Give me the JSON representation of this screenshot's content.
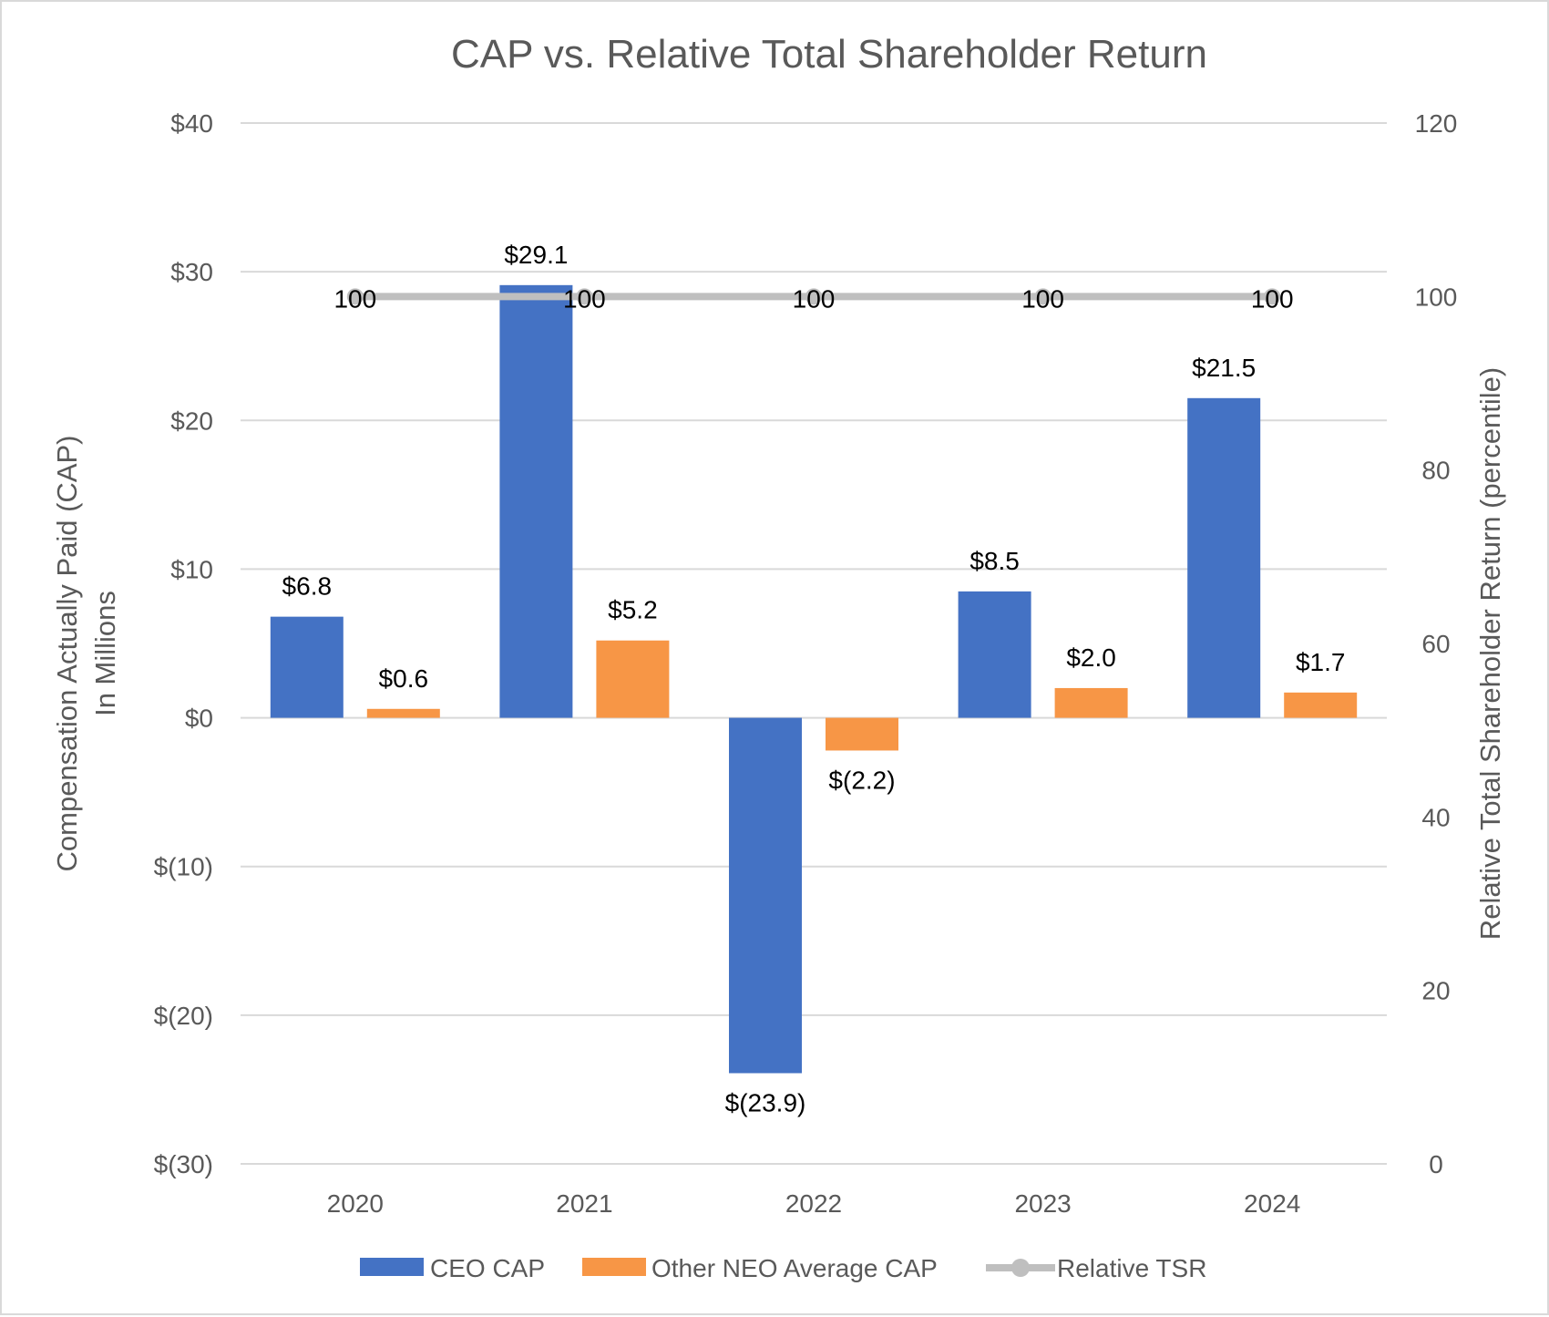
{
  "chart_data": {
    "type": "bar",
    "title": "CAP vs. Relative Total Shareholder Return",
    "ylabel": [
      "Compensation Actually Paid (CAP)",
      "In Millions"
    ],
    "y2label": "Relative Total Shareholder Return (percentile)",
    "categories": [
      "2020",
      "2021",
      "2022",
      "2023",
      "2024"
    ],
    "ylim": [
      -30,
      40
    ],
    "y_ticks": [
      -30,
      -20,
      -10,
      0,
      10,
      20,
      30,
      40
    ],
    "y_tick_labels": [
      "$(30)",
      "$(20)",
      "$(10)",
      "$0",
      "$10",
      "$20",
      "$30",
      "$40"
    ],
    "y2lim": [
      0,
      120
    ],
    "y2_ticks": [
      0,
      20,
      40,
      60,
      80,
      100,
      120
    ],
    "y2_tick_labels": [
      "0",
      "20",
      "40",
      "60",
      "80",
      "100",
      "120"
    ],
    "grid": true,
    "legend_position": "bottom",
    "series": [
      {
        "name": "CEO CAP",
        "type": "bar",
        "axis": "left",
        "color": "#4472c4",
        "values": [
          6.8,
          29.1,
          -23.9,
          8.5,
          21.5
        ],
        "labels": [
          "$6.8",
          "$29.1",
          "$(23.9)",
          "$8.5",
          "$21.5"
        ]
      },
      {
        "name": "Other NEO Average CAP",
        "type": "bar",
        "axis": "left",
        "color": "#f79646",
        "values": [
          0.6,
          5.2,
          -2.2,
          2.0,
          1.7
        ],
        "labels": [
          "$0.6",
          "$5.2",
          "$(2.2)",
          "$2.0",
          "$1.7"
        ]
      },
      {
        "name": "Relative TSR",
        "type": "line",
        "axis": "right",
        "color": "#bfbfbf",
        "values": [
          100,
          100,
          100,
          100,
          100
        ],
        "labels": [
          "100",
          "100",
          "100",
          "100",
          "100"
        ]
      }
    ]
  }
}
